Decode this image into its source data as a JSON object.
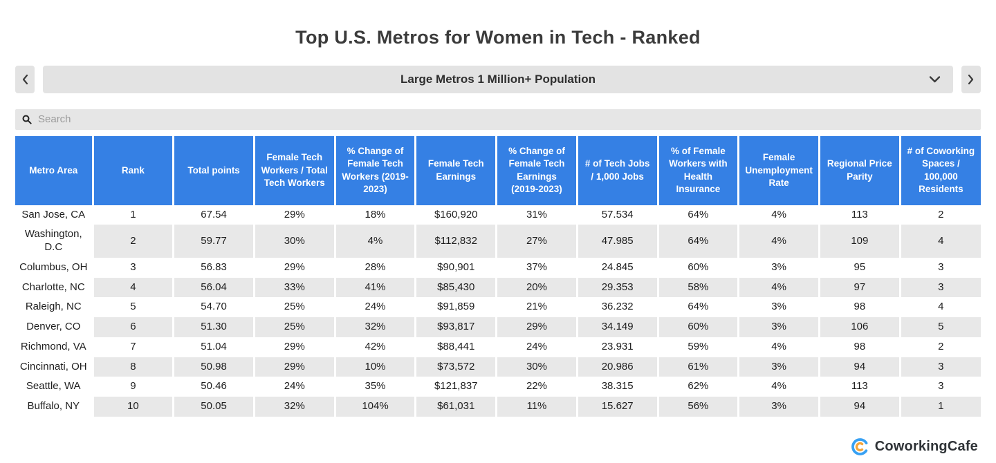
{
  "page_title": "Top U.S. Metros for Women in Tech - Ranked",
  "nav": {
    "dropdown_value": "Large Metros 1 Million+ Population"
  },
  "search": {
    "placeholder": "Search",
    "value": ""
  },
  "chart_data": {
    "type": "table",
    "title": "Top U.S. Metros for Women in Tech - Ranked",
    "subtitle": "Large Metros 1 Million+ Population",
    "columns": [
      "Metro Area",
      "Rank",
      "Total points",
      "Female Tech Workers / Total Tech Workers",
      "% Change of Female Tech Workers (2019-2023)",
      "Female Tech Earnings",
      "% Change of Female Tech Earnings (2019-2023)",
      "# of Tech Jobs / 1,000 Jobs",
      "% of Female Workers with Health Insurance",
      "Female Unemployment Rate",
      "Regional Price Parity",
      "# of Coworking Spaces / 100,000 Residents"
    ],
    "rows": [
      [
        "San Jose, CA",
        "1",
        "67.54",
        "29%",
        "18%",
        "$160,920",
        "31%",
        "57.534",
        "64%",
        "4%",
        "113",
        "2"
      ],
      [
        "Washington, D.C",
        "2",
        "59.77",
        "30%",
        "4%",
        "$112,832",
        "27%",
        "47.985",
        "64%",
        "4%",
        "109",
        "4"
      ],
      [
        "Columbus, OH",
        "3",
        "56.83",
        "29%",
        "28%",
        "$90,901",
        "37%",
        "24.845",
        "60%",
        "3%",
        "95",
        "3"
      ],
      [
        "Charlotte, NC",
        "4",
        "56.04",
        "33%",
        "41%",
        "$85,430",
        "20%",
        "29.353",
        "58%",
        "4%",
        "97",
        "3"
      ],
      [
        "Raleigh, NC",
        "5",
        "54.70",
        "25%",
        "24%",
        "$91,859",
        "21%",
        "36.232",
        "64%",
        "3%",
        "98",
        "4"
      ],
      [
        "Denver, CO",
        "6",
        "51.30",
        "25%",
        "32%",
        "$93,817",
        "29%",
        "34.149",
        "60%",
        "3%",
        "106",
        "5"
      ],
      [
        "Richmond, VA",
        "7",
        "51.04",
        "29%",
        "42%",
        "$88,441",
        "24%",
        "23.931",
        "59%",
        "4%",
        "98",
        "2"
      ],
      [
        "Cincinnati, OH",
        "8",
        "50.98",
        "29%",
        "10%",
        "$73,572",
        "30%",
        "20.986",
        "61%",
        "3%",
        "94",
        "3"
      ],
      [
        "Seattle, WA",
        "9",
        "50.46",
        "24%",
        "35%",
        "$121,837",
        "22%",
        "38.315",
        "62%",
        "4%",
        "113",
        "3"
      ],
      [
        "Buffalo, NY",
        "10",
        "50.05",
        "32%",
        "104%",
        "$61,031",
        "11%",
        "15.627",
        "56%",
        "3%",
        "94",
        "1"
      ]
    ]
  },
  "footer": {
    "brand": "CoworkingCafe"
  },
  "icons": {
    "prev": "chevron-left",
    "next": "chevron-right",
    "dropdown": "chevron-down",
    "search": "magnifier",
    "brand_mark": "double-c-ring"
  },
  "colors": {
    "header_blue": "#3580e4",
    "row_stripe": "#e8e8e8",
    "control_bg": "#e3e3e3",
    "title_text": "#3b3b3b",
    "logo_blue": "#38a1f3",
    "logo_orange": "#f5a53a"
  }
}
